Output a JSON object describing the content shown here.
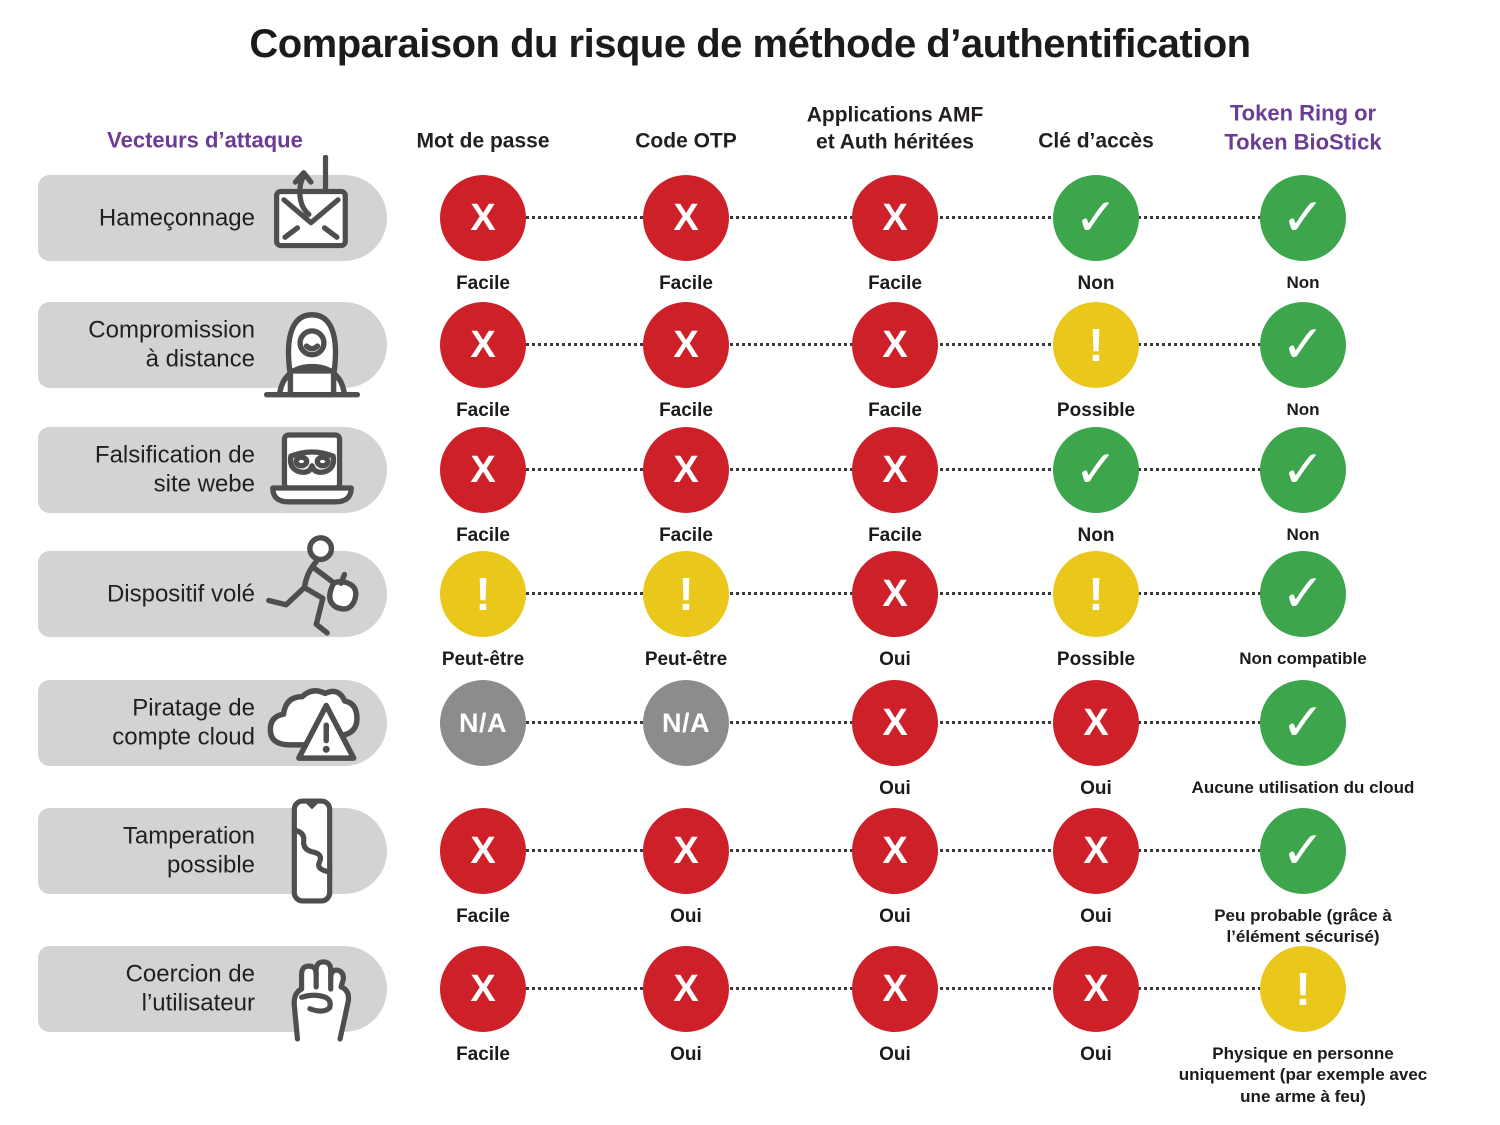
{
  "title": "Comparaison du risque de méthode d’authentification",
  "colors": {
    "red": "#CE2029",
    "green": "#3DA54C",
    "yellow": "#E9C71B",
    "gray": "#8A8C8E",
    "purple": "#6B3B96",
    "pill": "#D2D3D4",
    "ink": "#231F20",
    "icon_stroke": "#4D4E50",
    "dot": "#3A3A3A"
  },
  "columns": [
    {
      "label": "Vecteurs d’attaque",
      "accent": true
    },
    {
      "label": "Mot de passe",
      "accent": false
    },
    {
      "label": "Code OTP",
      "accent": false
    },
    {
      "label": "Applications AMF\net Auth héritées",
      "accent": false
    },
    {
      "label": "Clé d’accès",
      "accent": false
    },
    {
      "label": "Token Ring or\nToken BioStick",
      "accent": true
    }
  ],
  "status_glyphs": {
    "bad": "X",
    "ok": "✓",
    "warn": "!",
    "na": "N/A"
  },
  "rows": [
    {
      "vector": "Hameçonnage",
      "icon": "phishing-hook-envelope-icon",
      "cells": [
        {
          "status": "bad",
          "glyph": "X",
          "label": "Facile"
        },
        {
          "status": "bad",
          "glyph": "X",
          "label": "Facile"
        },
        {
          "status": "bad",
          "glyph": "X",
          "label": "Facile"
        },
        {
          "status": "ok",
          "glyph": "✓",
          "label": "Non"
        },
        {
          "status": "ok",
          "glyph": "✓",
          "label": "Non"
        }
      ]
    },
    {
      "vector": "Compromission\nà distance",
      "icon": "remote-hacker-icon",
      "cells": [
        {
          "status": "bad",
          "glyph": "X",
          "label": "Facile"
        },
        {
          "status": "bad",
          "glyph": "X",
          "label": "Facile"
        },
        {
          "status": "bad",
          "glyph": "X",
          "label": "Facile"
        },
        {
          "status": "warn",
          "glyph": "!",
          "label": "Possible"
        },
        {
          "status": "ok",
          "glyph": "✓",
          "label": "Non"
        }
      ]
    },
    {
      "vector": "Falsification de\nsite webe",
      "icon": "fake-website-mask-icon",
      "cells": [
        {
          "status": "bad",
          "glyph": "X",
          "label": "Facile"
        },
        {
          "status": "bad",
          "glyph": "X",
          "label": "Facile"
        },
        {
          "status": "bad",
          "glyph": "X",
          "label": "Facile"
        },
        {
          "status": "ok",
          "glyph": "✓",
          "label": "Non"
        },
        {
          "status": "ok",
          "glyph": "✓",
          "label": "Non"
        }
      ]
    },
    {
      "vector": "Dispositif volé",
      "icon": "stolen-device-thief-icon",
      "cells": [
        {
          "status": "warn",
          "glyph": "!",
          "label": "Peut-être"
        },
        {
          "status": "warn",
          "glyph": "!",
          "label": "Peut-être"
        },
        {
          "status": "bad",
          "glyph": "X",
          "label": "Oui"
        },
        {
          "status": "warn",
          "glyph": "!",
          "label": "Possible"
        },
        {
          "status": "ok",
          "glyph": "✓",
          "label": "Non compatible"
        }
      ]
    },
    {
      "vector": "Piratage de\ncompte cloud",
      "icon": "cloud-warning-icon",
      "cells": [
        {
          "status": "na",
          "glyph": "N/A",
          "label": ""
        },
        {
          "status": "na",
          "glyph": "N/A",
          "label": ""
        },
        {
          "status": "bad",
          "glyph": "X",
          "label": "Oui"
        },
        {
          "status": "bad",
          "glyph": "X",
          "label": "Oui"
        },
        {
          "status": "ok",
          "glyph": "✓",
          "label": "Aucune utilisation du cloud"
        }
      ]
    },
    {
      "vector": "Tamperation\npossible",
      "icon": "cracked-phone-icon",
      "cells": [
        {
          "status": "bad",
          "glyph": "X",
          "label": "Facile"
        },
        {
          "status": "bad",
          "glyph": "X",
          "label": "Oui"
        },
        {
          "status": "bad",
          "glyph": "X",
          "label": "Oui"
        },
        {
          "status": "bad",
          "glyph": "X",
          "label": "Oui"
        },
        {
          "status": "ok",
          "glyph": "✓",
          "label": "Peu probable (grâce à l’élément sécurisé)"
        }
      ]
    },
    {
      "vector": "Coercion de\nl’utilisateur",
      "icon": "coercion-fist-icon",
      "cells": [
        {
          "status": "bad",
          "glyph": "X",
          "label": "Facile"
        },
        {
          "status": "bad",
          "glyph": "X",
          "label": "Oui"
        },
        {
          "status": "bad",
          "glyph": "X",
          "label": "Oui"
        },
        {
          "status": "bad",
          "glyph": "X",
          "label": "Oui"
        },
        {
          "status": "warn",
          "glyph": "!",
          "label": "Physique en personne uniquement (par exemple avec une arme à feu)"
        }
      ]
    }
  ]
}
